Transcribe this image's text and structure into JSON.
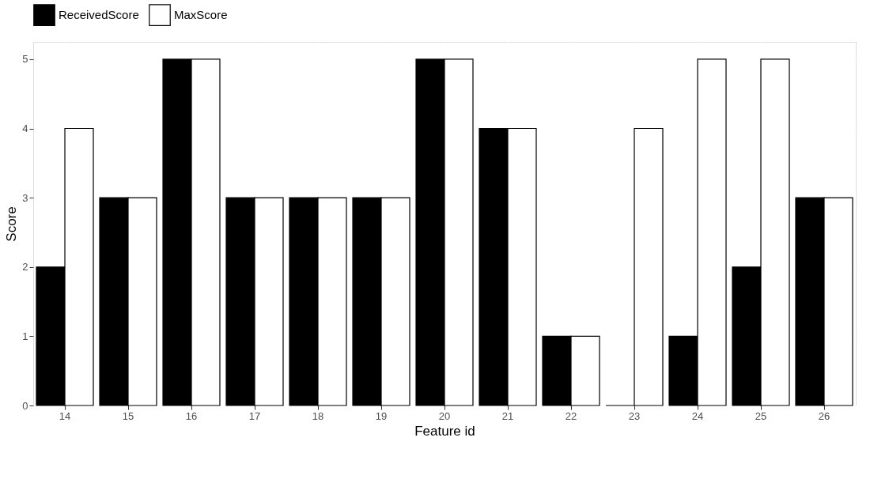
{
  "chart_data": {
    "type": "bar",
    "xlabel": "Feature id",
    "ylabel": "Score",
    "categories": [
      "14",
      "15",
      "16",
      "17",
      "18",
      "19",
      "20",
      "21",
      "22",
      "23",
      "24",
      "25",
      "26"
    ],
    "series": [
      {
        "name": "ReceivedScore",
        "color": "#000000",
        "values": [
          2,
          3,
          5,
          3,
          3,
          3,
          5,
          4,
          1,
          0,
          1,
          2,
          3
        ]
      },
      {
        "name": "MaxScore",
        "color": "#ffffff",
        "values": [
          4,
          3,
          5,
          3,
          3,
          3,
          5,
          4,
          1,
          4,
          5,
          5,
          3
        ]
      }
    ],
    "ylim": [
      0,
      5.25
    ],
    "yticks": [
      0,
      1,
      2,
      3,
      4,
      5
    ],
    "grid": true,
    "legend": "top"
  }
}
